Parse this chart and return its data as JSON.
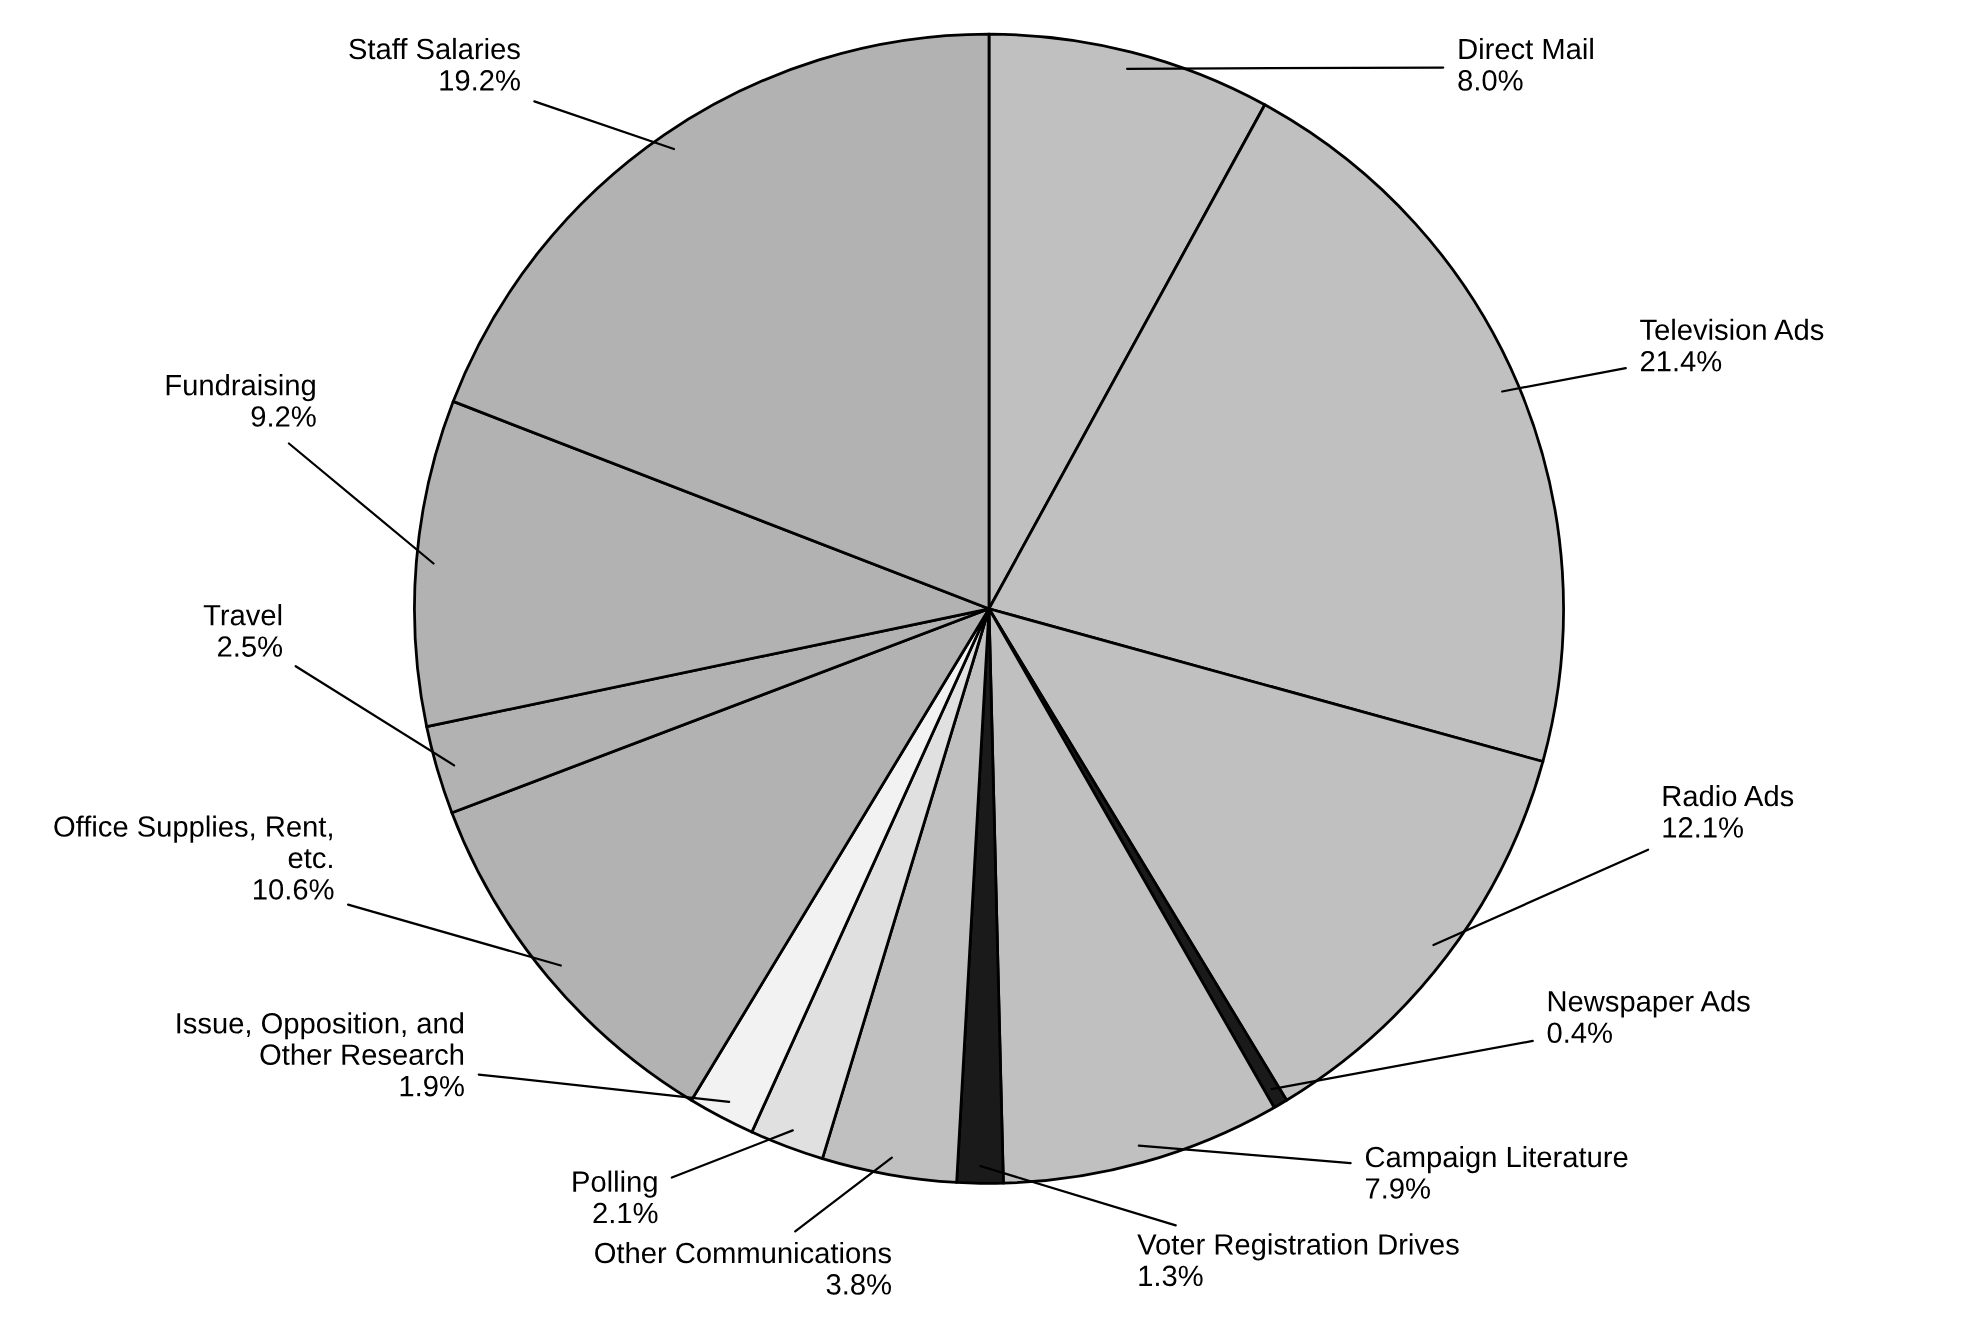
{
  "chart_data": {
    "type": "pie",
    "categories": [
      "Direct Mail",
      "Television Ads",
      "Radio Ads",
      "Newspaper Ads",
      "Campaign Literature",
      "Voter Registration Drives",
      "Other Communications",
      "Polling",
      "Issue, Opposition, and\nOther Research",
      "Office Supplies, Rent,\netc.",
      "Travel",
      "Fundraising",
      "Staff Salaries"
    ],
    "values": [
      8.0,
      21.4,
      12.1,
      0.4,
      7.9,
      1.3,
      3.8,
      2.1,
      1.9,
      10.6,
      2.5,
      9.2,
      19.2
    ],
    "value_labels": [
      "8.0%",
      "21.4%",
      "12.1%",
      "0.4%",
      "7.9%",
      "1.3%",
      "3.8%",
      "2.1%",
      "1.9%",
      "10.6%",
      "2.5%",
      "9.2%",
      "19.2%"
    ],
    "colors": [
      "#c0c0c0",
      "#c0c0c0",
      "#c0c0c0",
      "#1a1a1a",
      "#c0c0c0",
      "#1a1a1a",
      "#c0c0c0",
      "#e0e0e0",
      "#f2f2f2",
      "#b2b2b2",
      "#b2b2b2",
      "#b2b2b2",
      "#b2b2b2"
    ],
    "legend": false
  }
}
